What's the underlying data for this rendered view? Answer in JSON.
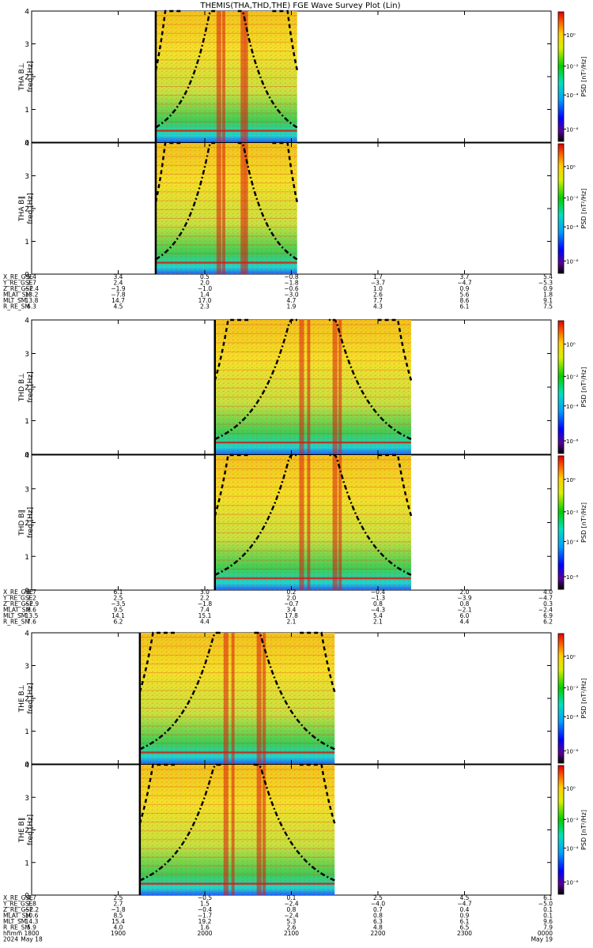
{
  "title": "THEMIS(THA,THD,THE) FGE Wave Survey Plot (Lin)",
  "colorbar_label": "PSD [nT²/Hz]",
  "colorbar_ticks": [
    "10⁰",
    "10⁻²",
    "10⁻⁴",
    "10⁻⁶"
  ],
  "chart_data": [
    {
      "type": "heatmap",
      "probe": "THA",
      "panel_label": "THA B⊥",
      "ylabel": "freq [Hz]",
      "ylim": [
        0,
        4
      ],
      "yticks": [
        "0",
        "1",
        "2",
        "3",
        "4"
      ],
      "data_span_x": [
        "1926",
        "2104"
      ]
    },
    {
      "type": "heatmap",
      "probe": "THA",
      "panel_label": "THA B∥",
      "ylabel": "freq [Hz]",
      "ylim": [
        0,
        4
      ],
      "yticks": [
        "0",
        "1",
        "2",
        "3",
        "4"
      ],
      "data_span_x": [
        "1926",
        "2104"
      ]
    },
    {
      "type": "heatmap",
      "probe": "THD",
      "panel_label": "THD B⊥",
      "ylabel": "freq [Hz]",
      "ylim": [
        0,
        4
      ],
      "yticks": [
        "0",
        "1",
        "2",
        "3",
        "4"
      ],
      "data_span_x": [
        "2007",
        "2183"
      ]
    },
    {
      "type": "heatmap",
      "probe": "THD",
      "panel_label": "THD B∥",
      "ylabel": "freq [Hz]",
      "ylim": [
        0,
        4
      ],
      "yticks": [
        "0",
        "1",
        "2",
        "3",
        "4"
      ],
      "data_span_x": [
        "2007",
        "2183"
      ]
    },
    {
      "type": "heatmap",
      "probe": "THE",
      "panel_label": "THE B⊥",
      "ylabel": "freq [Hz]",
      "ylim": [
        0,
        4
      ],
      "yticks": [
        "0",
        "1",
        "2",
        "3",
        "4"
      ],
      "data_span_x": [
        "1915",
        "2090"
      ]
    },
    {
      "type": "heatmap",
      "probe": "THE",
      "panel_label": "THE B∥",
      "ylabel": "freq [Hz]",
      "ylim": [
        0,
        4
      ],
      "yticks": [
        "0",
        "1",
        "2",
        "3",
        "4"
      ],
      "data_span_x": [
        "1915",
        "2090"
      ]
    }
  ],
  "ephemeris": [
    {
      "probe": "THA",
      "rows": [
        {
          "label": "X_RE_GSE",
          "values": [
            "5.4",
            "3.4",
            "0.5",
            "−0.8",
            "1.7",
            "3.7",
            "5.4"
          ]
        },
        {
          "label": "Y_RE_GSE",
          "values": [
            "2.7",
            "2.4",
            "2.0",
            "−1.8",
            "−3.7",
            "−4.7",
            "−5.3"
          ]
        },
        {
          "label": "Z_RE_GSE",
          "values": [
            "−2.4",
            "−1.9",
            "−1.0",
            "−0.6",
            "1.0",
            "0.9",
            "0.9"
          ]
        },
        {
          "label": "MLAT_SM",
          "values": [
            "13.2",
            "−7.8",
            "1.4",
            "−3.0",
            "2.6",
            "5.6",
            "1.8"
          ]
        },
        {
          "label": "MLT_SM",
          "values": [
            "13.8",
            "14.7",
            "17.0",
            "4.7",
            "7.7",
            "8.6",
            "9.1"
          ]
        },
        {
          "label": "R_RE_SM",
          "values": [
            "6.3",
            "4.5",
            "2.3",
            "1.9",
            "4.3",
            "6.1",
            "7.5"
          ]
        }
      ]
    },
    {
      "probe": "THD",
      "rows": [
        {
          "label": "X_RE_GSE",
          "values": [
            "8.7",
            "6.1",
            "3.0",
            "0.2",
            "−0.4",
            "2.0",
            "4.0"
          ]
        },
        {
          "label": "Y_RE_GSE",
          "values": [
            "2.2",
            "2.5",
            "2.2",
            "2.0",
            "−1.3",
            "−3.9",
            "−4.7"
          ]
        },
        {
          "label": "Z_RE_GSE",
          "values": [
            "−2.9",
            "−3.5",
            "−1.8",
            "−0.7",
            "0.8",
            "0.8",
            "0.3"
          ]
        },
        {
          "label": "MLAT_SM",
          "values": [
            "8.6",
            "9.5",
            "7.4",
            "3.4",
            "−4.3",
            "−2.1",
            "−2.4"
          ]
        },
        {
          "label": "MLT_SM",
          "values": [
            "13.5",
            "14.1",
            "15.1",
            "17.8",
            "5.4",
            "6.0",
            "6.9"
          ]
        },
        {
          "label": "R_RE_SM",
          "values": [
            "7.6",
            "6.2",
            "4.4",
            "2.1",
            "2.1",
            "4.4",
            "6.2"
          ]
        }
      ]
    },
    {
      "probe": "THE",
      "rows": [
        {
          "label": "X_RE_GSE",
          "values": [
            "4.7",
            "2.5",
            "−0.5",
            "0.1",
            "2.5",
            "4.5",
            "6.1"
          ]
        },
        {
          "label": "Y_RE_GSE",
          "values": [
            "2.8",
            "2.7",
            "1.5",
            "−2.4",
            "−4.0",
            "−4.7",
            "−5.0"
          ]
        },
        {
          "label": "Z_RE_GSE",
          "values": [
            "−2.2",
            "−1.8",
            "−0.4",
            "0.8",
            "0.7",
            "0.4",
            "0.1"
          ]
        },
        {
          "label": "MLAT_SM",
          "values": [
            "10.6",
            "8.5",
            "−1.7",
            "−2.4",
            "0.8",
            "0.9",
            "0.1"
          ]
        },
        {
          "label": "MLT_SM",
          "values": [
            "14.3",
            "15.4",
            "19.2",
            "5.3",
            "6.3",
            "6.1",
            "9.6"
          ]
        },
        {
          "label": "R_RE_SM",
          "values": [
            "5.9",
            "4.0",
            "1.6",
            "2.6",
            "4.8",
            "6.5",
            "7.9"
          ]
        }
      ]
    }
  ],
  "time_axis": {
    "label": "hhmm",
    "date_label": "2024",
    "ticks": [
      "1800",
      "1900",
      "2000",
      "2100",
      "2200",
      "2300",
      "0000"
    ],
    "dates": [
      "May 18",
      "",
      "",
      "",
      "",
      "",
      "May 19"
    ]
  }
}
